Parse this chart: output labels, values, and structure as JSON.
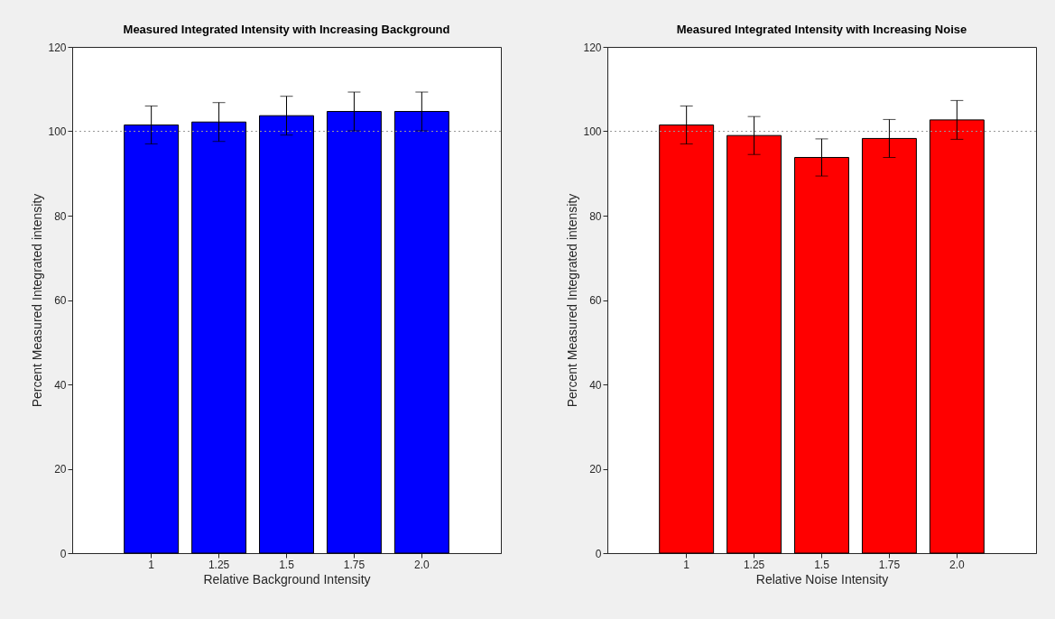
{
  "chart_data": [
    {
      "type": "bar",
      "title": "Measured Integrated Intensity with Increasing Background",
      "xlabel": "Relative Background Intensity",
      "ylabel": "Percent Measured Integrated intensity",
      "categories": [
        "1",
        "1.25",
        "1.5",
        "1.75",
        "2.0"
      ],
      "values": [
        101.5,
        102.2,
        103.7,
        104.7,
        104.7
      ],
      "errors": [
        4.5,
        4.6,
        4.6,
        4.6,
        4.6
      ],
      "color": "#0000ff",
      "ylim": [
        0,
        120
      ],
      "yticks": [
        0,
        20,
        40,
        60,
        80,
        100,
        120
      ],
      "ref_lines": [
        {
          "axis": "y",
          "value": 100,
          "color": "#999999",
          "line_style": "dotted"
        }
      ]
    },
    {
      "type": "bar",
      "title": "Measured Integrated Intensity with Increasing Noise",
      "xlabel": "Relative Noise Intensity",
      "ylabel": "Percent Measured Integrated intensity",
      "categories": [
        "1",
        "1.25",
        "1.5",
        "1.75",
        "2.0"
      ],
      "values": [
        101.5,
        99.0,
        93.8,
        98.3,
        102.7
      ],
      "errors": [
        4.5,
        4.5,
        4.4,
        4.5,
        4.6
      ],
      "color": "#ff0000",
      "ylim": [
        0,
        120
      ],
      "yticks": [
        0,
        20,
        40,
        60,
        80,
        100,
        120
      ],
      "ref_lines": [
        {
          "axis": "y",
          "value": 100,
          "color": "#999999",
          "line_style": "dotted"
        }
      ]
    }
  ]
}
